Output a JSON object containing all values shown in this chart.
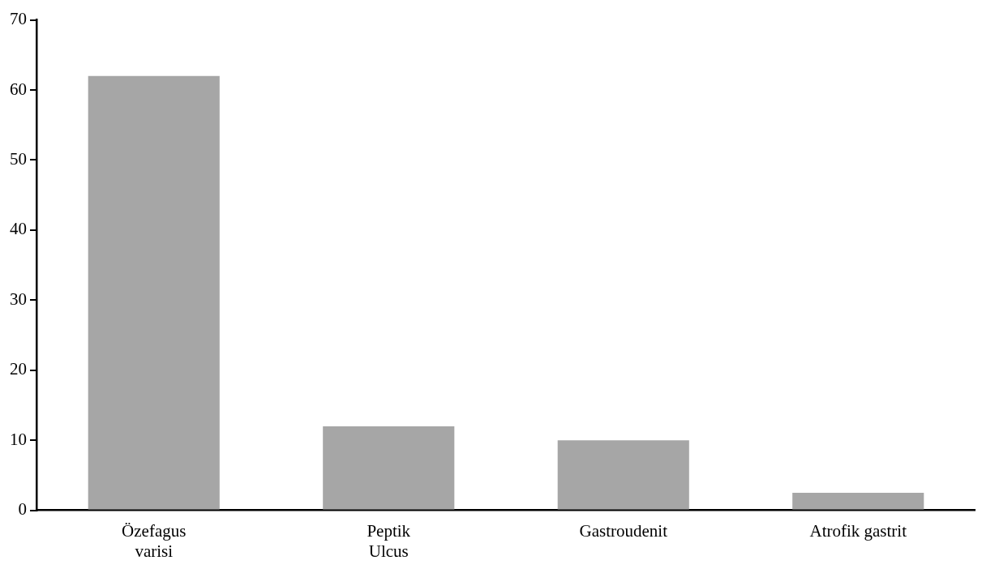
{
  "chart_data": {
    "type": "bar",
    "categories": [
      "Özefagus\nvarisi",
      "Peptik\nUlcus",
      "Gastroudenit",
      "Atrofik gastrit"
    ],
    "values": [
      62,
      12,
      10,
      2.5
    ],
    "color": "#a6a6a6",
    "ylim": [
      0,
      70
    ],
    "yticks": [
      0,
      10,
      20,
      30,
      40,
      50,
      60,
      70
    ],
    "grid": false,
    "legend": false
  }
}
